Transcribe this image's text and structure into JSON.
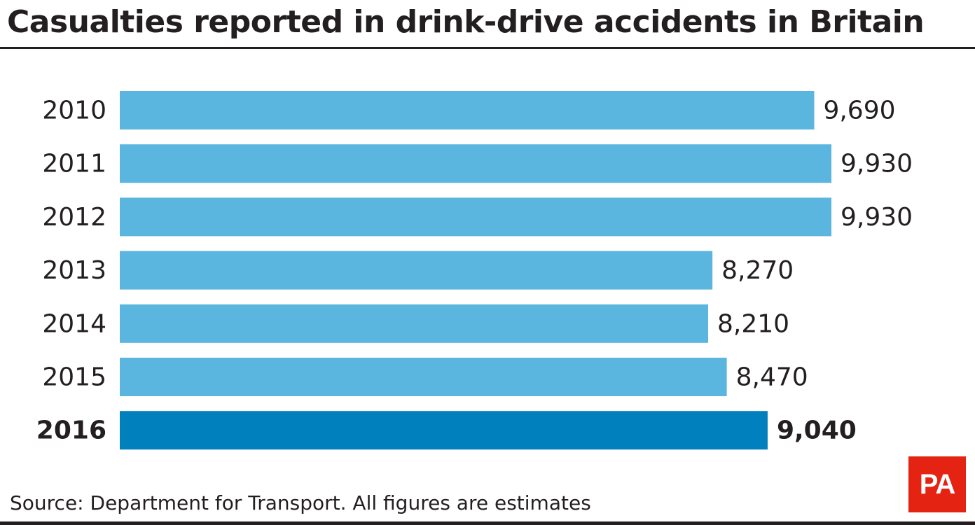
{
  "colors": {
    "bar": "#5bb6df",
    "bar_highlight": "#0080bc",
    "text": "#231f20",
    "logo": "#e42313"
  },
  "footer": {
    "source": "Source: Department for Transport. All figures are estimates",
    "logo_text": "PA"
  },
  "chart_data": {
    "type": "bar",
    "orientation": "horizontal",
    "title": "Casualties reported in drink-drive accidents in Britain",
    "categories": [
      "2010",
      "2011",
      "2012",
      "2013",
      "2014",
      "2015",
      "2016"
    ],
    "values": [
      9690,
      9930,
      9930,
      8270,
      8210,
      8470,
      9040
    ],
    "value_labels": [
      "9,690",
      "9,930",
      "9,930",
      "8,270",
      "8,210",
      "8,470",
      "9,040"
    ],
    "highlight": "2016",
    "xlim": [
      0,
      9930
    ],
    "grid": false,
    "legend": "none"
  }
}
